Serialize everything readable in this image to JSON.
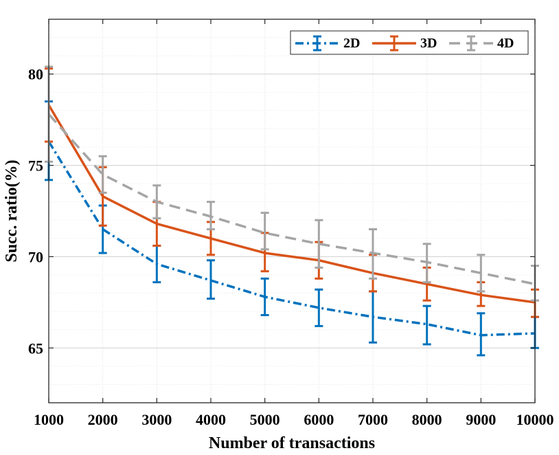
{
  "chart_data": {
    "type": "line",
    "title": "",
    "xlabel": "Number of transactions",
    "ylabel": "Succ. ratio(%)",
    "x": [
      1000,
      2000,
      3000,
      4000,
      5000,
      6000,
      7000,
      8000,
      9000,
      10000
    ],
    "x_tick_labels": [
      "1000",
      "2000",
      "3000",
      "4000",
      "5000",
      "6000",
      "7000",
      "8000",
      "9000",
      "10000"
    ],
    "xlim": [
      1000,
      10000
    ],
    "ylim": [
      62,
      83
    ],
    "y_ticks": [
      65,
      70,
      75,
      80
    ],
    "y_tick_labels": [
      "65",
      "70",
      "75",
      "80"
    ],
    "grid": true,
    "minor_grid": true,
    "legend_position": "top-right",
    "series": [
      {
        "name": "2D",
        "color": "#0072BD",
        "line_style": "dash-dot",
        "values": [
          76.3,
          71.5,
          69.6,
          68.7,
          67.8,
          67.2,
          66.7,
          66.3,
          65.7,
          65.8
        ],
        "err_low": [
          74.2,
          70.2,
          68.6,
          67.7,
          66.8,
          66.2,
          65.3,
          65.2,
          64.6,
          65.0
        ],
        "err_high": [
          78.5,
          72.8,
          70.6,
          69.8,
          68.8,
          68.2,
          68.1,
          67.3,
          66.9,
          66.7
        ]
      },
      {
        "name": "3D",
        "color": "#D95319",
        "line_style": "solid",
        "values": [
          78.3,
          73.3,
          71.8,
          71.0,
          70.2,
          69.8,
          69.1,
          68.5,
          67.9,
          67.5
        ],
        "err_low": [
          76.3,
          71.7,
          70.6,
          70.1,
          69.2,
          68.8,
          68.1,
          67.6,
          67.3,
          66.7
        ],
        "err_high": [
          80.3,
          74.9,
          73.0,
          71.9,
          71.3,
          70.8,
          70.1,
          69.4,
          68.6,
          68.2
        ]
      },
      {
        "name": "4D",
        "color": "#A5A5A5",
        "line_style": "dashed",
        "values": [
          77.8,
          74.5,
          73.0,
          72.2,
          71.3,
          70.7,
          70.2,
          69.7,
          69.1,
          68.5
        ],
        "err_low": [
          75.2,
          73.5,
          72.1,
          71.5,
          70.4,
          69.4,
          68.8,
          68.6,
          68.1,
          67.6
        ],
        "err_high": [
          80.4,
          75.5,
          73.9,
          73.0,
          72.4,
          72.0,
          71.5,
          70.7,
          70.1,
          69.5
        ]
      }
    ]
  }
}
